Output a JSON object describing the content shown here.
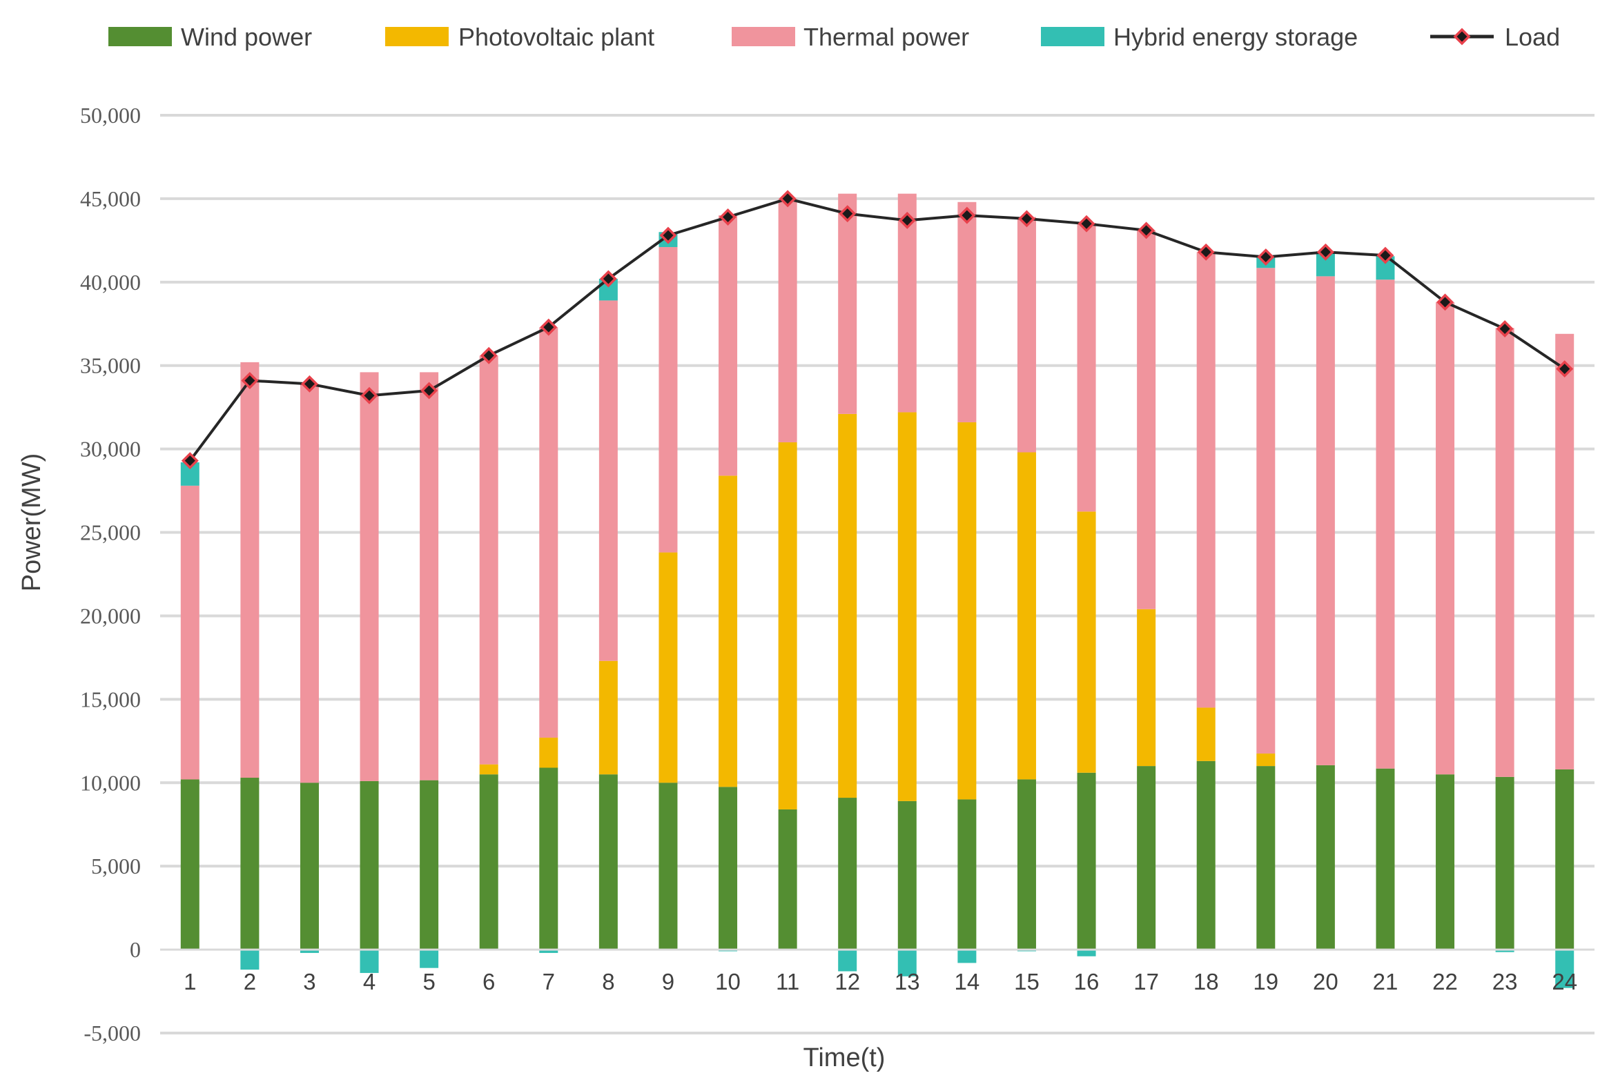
{
  "chart_data": {
    "type": "bar",
    "stacked": true,
    "title": "",
    "xlabel": "Time(t)",
    "ylabel": "Power(MW)",
    "ylim": [
      -5000,
      50000
    ],
    "ytick_step": 5000,
    "grid": true,
    "legend_position": "top",
    "categories": [
      "1",
      "2",
      "3",
      "4",
      "5",
      "6",
      "7",
      "8",
      "9",
      "10",
      "11",
      "12",
      "13",
      "14",
      "15",
      "16",
      "17",
      "18",
      "19",
      "20",
      "21",
      "22",
      "23",
      "24"
    ],
    "series": [
      {
        "name": "Wind power",
        "kind": "bar",
        "color": "#548e32",
        "values": [
          10200,
          10300,
          10000,
          10100,
          10150,
          10500,
          10900,
          10500,
          10000,
          9750,
          8400,
          9100,
          8900,
          9000,
          10200,
          10600,
          11000,
          11300,
          11000,
          11050,
          10850,
          10500,
          10350,
          10800
        ]
      },
      {
        "name": "Photovoltaic plant",
        "kind": "bar",
        "color": "#f3b800",
        "values": [
          0,
          0,
          0,
          0,
          0,
          600,
          1800,
          6800,
          13800,
          18650,
          22000,
          23000,
          23300,
          22600,
          19600,
          15650,
          9400,
          3200,
          750,
          0,
          0,
          0,
          0,
          0
        ]
      },
      {
        "name": "Thermal power",
        "kind": "bar",
        "color": "#f0949d",
        "values": [
          17600,
          24900,
          23900,
          24500,
          24450,
          24500,
          24600,
          21600,
          18300,
          15600,
          14600,
          13200,
          13100,
          13200,
          14100,
          17300,
          22700,
          27300,
          29100,
          29300,
          29300,
          28300,
          26900,
          26100
        ]
      },
      {
        "name": "Hybrid energy storage",
        "kind": "bar",
        "color": "#33bfb3",
        "values": [
          1400,
          -1200,
          -200,
          -1400,
          -1100,
          0,
          -200,
          1300,
          900,
          -100,
          0,
          -1300,
          -1600,
          -800,
          -100,
          -400,
          0,
          0,
          700,
          1500,
          1400,
          0,
          -150,
          -2300
        ]
      },
      {
        "name": "Load",
        "kind": "line",
        "color": "#262626",
        "marker_color": "#e8414b",
        "values": [
          29300,
          34100,
          33900,
          33200,
          33500,
          35600,
          37300,
          40200,
          42800,
          43900,
          45000,
          44100,
          43700,
          44000,
          43800,
          43500,
          43100,
          41800,
          41500,
          41800,
          41600,
          38800,
          37200,
          34800
        ]
      }
    ],
    "ytick_labels": [
      "-5,000",
      "0",
      "5,000",
      "10,000",
      "15,000",
      "20,000",
      "25,000",
      "30,000",
      "35,000",
      "40,000",
      "45,000",
      "50,000"
    ]
  }
}
